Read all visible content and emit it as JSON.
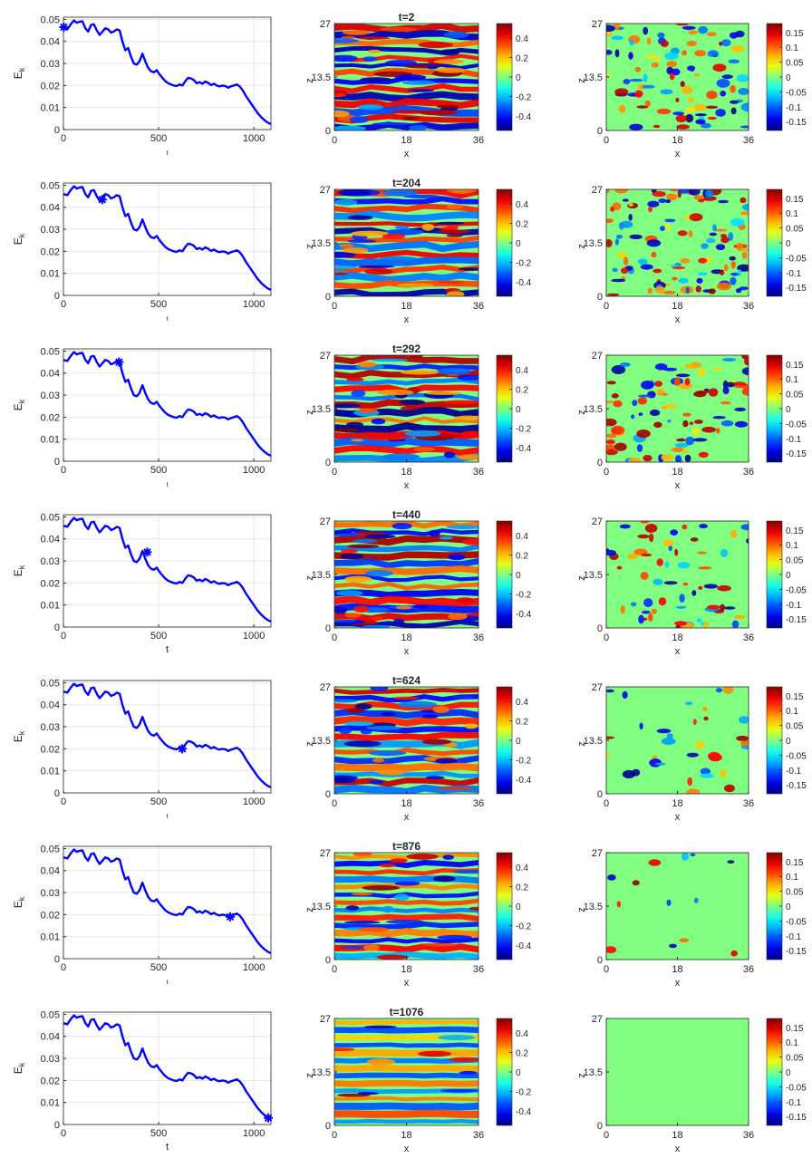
{
  "chart_data": {
    "type": "line",
    "energy": {
      "xlabel": "t",
      "ylabel_base": "E",
      "ylabel_sub": "k",
      "xlim": [
        0,
        1090
      ],
      "ylim": [
        0,
        0.051
      ],
      "xticks": [
        "0",
        "500",
        "1000"
      ],
      "xtick_values": [
        0,
        500,
        1000
      ],
      "yticks": [
        "0",
        "0.01",
        "0.02",
        "0.03",
        "0.04",
        "0.05"
      ],
      "ytick_values": [
        0,
        0.01,
        0.02,
        0.03,
        0.04,
        0.05
      ],
      "grid": true,
      "line_color": "#0000ff",
      "series": {
        "x": [
          0,
          20,
          40,
          55,
          70,
          85,
          100,
          115,
          130,
          145,
          160,
          175,
          190,
          205,
          220,
          235,
          250,
          265,
          280,
          295,
          310,
          325,
          340,
          355,
          370,
          385,
          400,
          415,
          430,
          445,
          460,
          475,
          490,
          505,
          520,
          535,
          550,
          565,
          580,
          595,
          610,
          625,
          640,
          655,
          670,
          685,
          700,
          715,
          730,
          745,
          760,
          775,
          790,
          805,
          820,
          835,
          850,
          865,
          880,
          895,
          910,
          925,
          940,
          960,
          980,
          1000,
          1020,
          1040,
          1060,
          1076,
          1090
        ],
        "y": [
          0.046,
          0.0455,
          0.048,
          0.0495,
          0.0485,
          0.049,
          0.0492,
          0.046,
          0.0445,
          0.0475,
          0.0478,
          0.045,
          0.043,
          0.0445,
          0.046,
          0.0455,
          0.044,
          0.0445,
          0.0455,
          0.045,
          0.04,
          0.036,
          0.037,
          0.033,
          0.03,
          0.0295,
          0.031,
          0.0345,
          0.031,
          0.028,
          0.0265,
          0.026,
          0.027,
          0.025,
          0.0235,
          0.022,
          0.021,
          0.0205,
          0.02,
          0.0198,
          0.0205,
          0.02,
          0.022,
          0.0235,
          0.0232,
          0.0225,
          0.021,
          0.0215,
          0.0208,
          0.0218,
          0.0212,
          0.0202,
          0.0208,
          0.02,
          0.0196,
          0.02,
          0.0198,
          0.019,
          0.0196,
          0.02,
          0.0205,
          0.0197,
          0.018,
          0.015,
          0.0125,
          0.01,
          0.0075,
          0.0055,
          0.004,
          0.003,
          0.0025
        ]
      }
    },
    "colorbar1": {
      "ticks": [
        "0.4",
        "0.2",
        "0",
        "-0.2",
        "-0.4"
      ],
      "tick_values": [
        0.4,
        0.2,
        0,
        -0.2,
        -0.4
      ],
      "range": [
        -0.55,
        0.55
      ]
    },
    "colorbar2": {
      "ticks": [
        "0.15",
        "0.1",
        "0.05",
        "0",
        "-0.05",
        "-0.1",
        "-0.15"
      ],
      "tick_values": [
        0.15,
        0.1,
        0.05,
        0,
        -0.05,
        -0.1,
        -0.15
      ],
      "range": [
        -0.18,
        0.18
      ]
    },
    "field_axes": {
      "xlabel": "x",
      "ylabel": "z",
      "xticks": [
        "0",
        "18",
        "36"
      ],
      "xtick_values": [
        0,
        18,
        36
      ],
      "yticks": [
        "0",
        "13.5",
        "27"
      ],
      "ytick_values": [
        0,
        13.5,
        27
      ]
    },
    "rows": [
      {
        "title": "t=2",
        "marker_t": 2,
        "marker_E": 0.0465,
        "show_t_label": false
      },
      {
        "title": "t=204",
        "marker_t": 204,
        "marker_E": 0.0435,
        "show_t_label": false
      },
      {
        "title": "t=292",
        "marker_t": 292,
        "marker_E": 0.045,
        "show_t_label": false
      },
      {
        "title": "t=440",
        "marker_t": 440,
        "marker_E": 0.034,
        "show_t_label": true
      },
      {
        "title": "t=624",
        "marker_t": 624,
        "marker_E": 0.02,
        "show_t_label": false
      },
      {
        "title": "t=876",
        "marker_t": 876,
        "marker_E": 0.019,
        "show_t_label": false
      },
      {
        "title": "t=1076",
        "marker_t": 1076,
        "marker_E": 0.003,
        "show_t_label": true
      }
    ],
    "field_activity": [
      {
        "mid": 1.0,
        "right": 0.85
      },
      {
        "mid": 0.9,
        "right": 1.0
      },
      {
        "mid": 0.95,
        "right": 0.8
      },
      {
        "mid": 0.85,
        "right": 0.55
      },
      {
        "mid": 0.75,
        "right": 0.3
      },
      {
        "mid": 0.6,
        "right": 0.12
      },
      {
        "mid": 0.25,
        "right": 0.0
      }
    ]
  }
}
